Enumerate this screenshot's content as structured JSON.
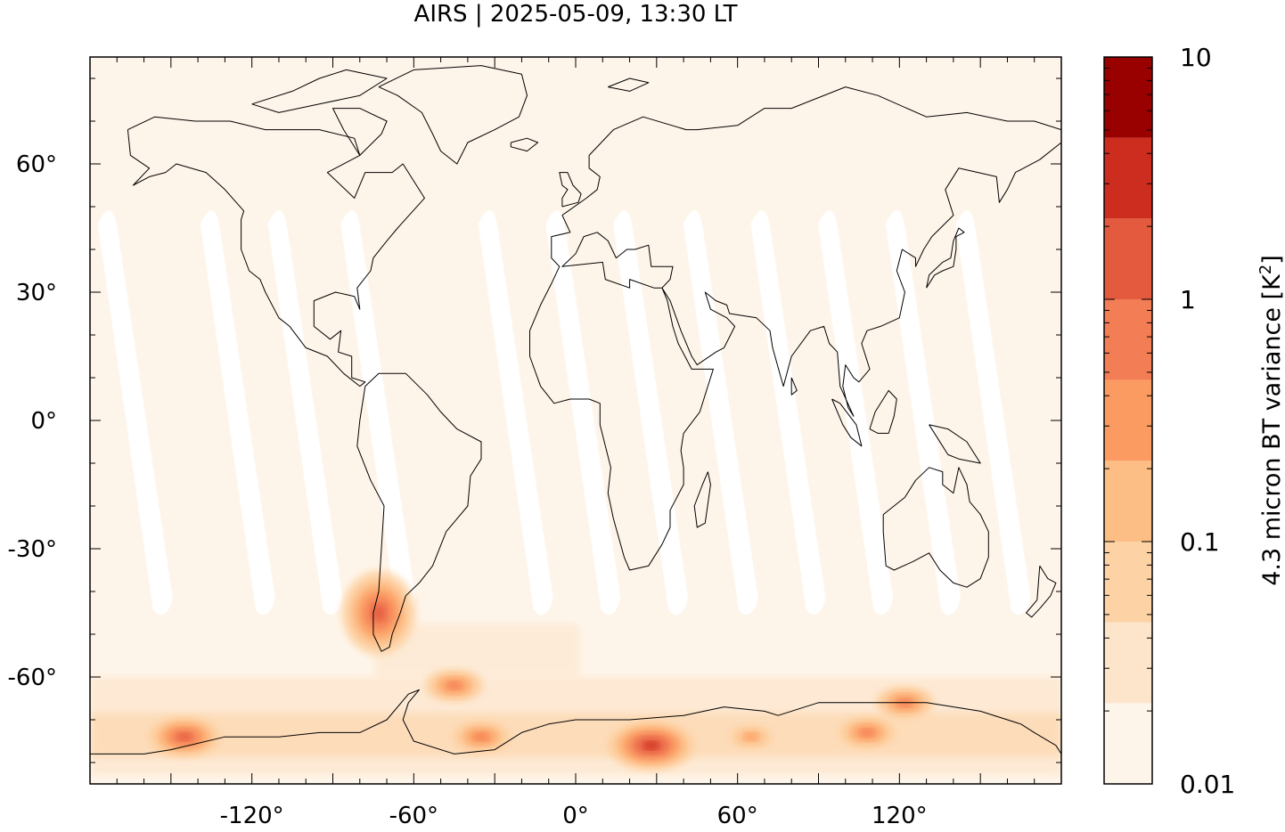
{
  "title": "AIRS | 2025-05-09, 13:30 LT",
  "map": {
    "lon_ticks": [
      {
        "value": -120,
        "label": "-120°"
      },
      {
        "value": -60,
        "label": "-60°"
      },
      {
        "value": 0,
        "label": "0°"
      },
      {
        "value": 60,
        "label": "60°"
      },
      {
        "value": 120,
        "label": "120°"
      }
    ],
    "lat_ticks": [
      {
        "value": 60,
        "label": "60°"
      },
      {
        "value": 30,
        "label": "30°"
      },
      {
        "value": 0,
        "label": "0°"
      },
      {
        "value": -30,
        "label": "-30°"
      },
      {
        "value": -60,
        "label": "-60°"
      }
    ],
    "lon_range": [
      -180,
      180
    ],
    "lat_range": [
      -85,
      85
    ],
    "background_color": "#fef5ea",
    "gap_color": "#ffffff",
    "coastline_color": "#000000"
  },
  "colorbar": {
    "label": "4.3 micron BT variance [K",
    "label_superscript": "2",
    "label_close": "]",
    "scale": "log",
    "range": [
      0.01,
      10
    ],
    "tick_labels": [
      {
        "value": 10,
        "label": "10"
      },
      {
        "value": 1,
        "label": "1"
      },
      {
        "value": 0.1,
        "label": "0.1"
      },
      {
        "value": 0.01,
        "label": "0.01"
      }
    ],
    "colors": [
      "#fef5ea",
      "#fde5cb",
      "#fdd3a5",
      "#fdbe85",
      "#fc9b61",
      "#f37d55",
      "#e45a3f",
      "#cc2d1f",
      "#990000"
    ]
  },
  "hotspots": [
    {
      "name": "patagonia",
      "lon": -73,
      "lat": -45,
      "level": 6
    },
    {
      "name": "drake-passage",
      "lon": -45,
      "lat": -62,
      "level": 5
    },
    {
      "name": "weddell-sea",
      "lon": -35,
      "lat": -74,
      "level": 5
    },
    {
      "name": "dronning-maud",
      "lon": 28,
      "lat": -76,
      "level": 7
    },
    {
      "name": "ross-ice-shelf",
      "lon": -145,
      "lat": -74,
      "level": 6
    },
    {
      "name": "wilkes-land",
      "lon": 122,
      "lat": -66,
      "level": 5
    },
    {
      "name": "george-v-land",
      "lon": 108,
      "lat": -73,
      "level": 5
    },
    {
      "name": "amery",
      "lon": 65,
      "lat": -74,
      "level": 4
    }
  ]
}
